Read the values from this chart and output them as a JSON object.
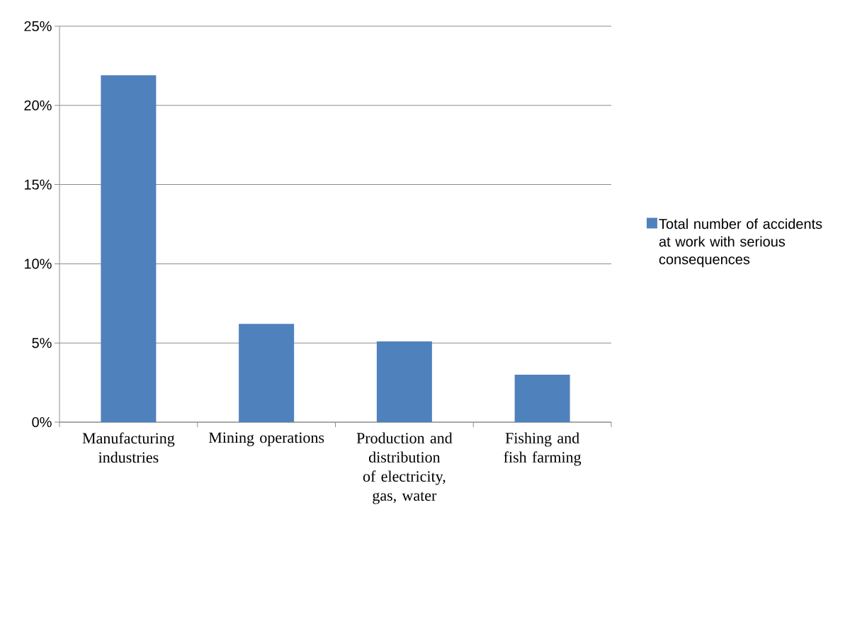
{
  "chart_data": {
    "type": "bar",
    "categories": [
      "Manufacturing industries",
      "Mining operations",
      "Production and distribution of electricity, gas, water",
      "Fishing and fish farming"
    ],
    "series": [
      {
        "name": "Total number of accidents at work with serious consequences",
        "color": "#4f81bd",
        "values": [
          21.9,
          6.2,
          5.1,
          3.0
        ]
      }
    ],
    "ylim": [
      0,
      25
    ],
    "yticks": [
      {
        "value": 0,
        "label": "0%"
      },
      {
        "value": 5,
        "label": "5%"
      },
      {
        "value": 10,
        "label": "10%"
      },
      {
        "value": 15,
        "label": "15%"
      },
      {
        "value": 20,
        "label": "20%"
      },
      {
        "value": 25,
        "label": "25%"
      }
    ],
    "grid": "y",
    "legend": "right"
  }
}
